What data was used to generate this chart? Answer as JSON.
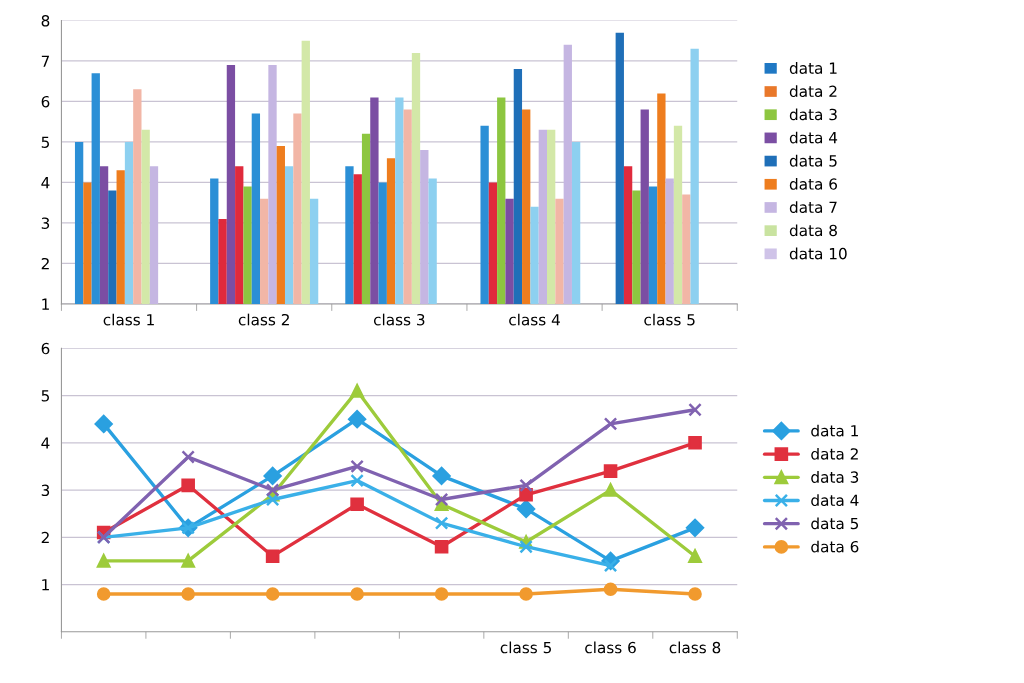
{
  "chart_data": [
    {
      "type": "bar",
      "categories": [
        "class 1",
        "class 2",
        "class 3",
        "class 4",
        "class 5"
      ],
      "series": [
        {
          "name": "data 1",
          "color": "#1f78c4",
          "values": [
            5.0,
            4.1,
            4.4,
            5.4,
            7.7
          ],
          "colors": [
            "#2b8fd6",
            "#2b8fd6",
            "#2b8fd6",
            "#2b8fd6",
            "#1f6fb8"
          ]
        },
        {
          "name": "data 2",
          "color": "#e9782a",
          "values": [
            4.0,
            3.1,
            4.2,
            4.0,
            4.4
          ],
          "colors": [
            "#ee7d1e",
            "#e02a3c",
            "#e02a3c",
            "#e02a3c",
            "#e02a3c"
          ]
        },
        {
          "name": "data 3",
          "color": "#8dc640",
          "values": [
            6.7,
            6.9,
            5.2,
            6.1,
            3.8
          ],
          "colors": [
            "#2b8fd6",
            "#7b4ea3",
            "#8dc640",
            "#8dc640",
            "#8dc640"
          ]
        },
        {
          "name": "data 4",
          "color": "#7b4ea3",
          "values": [
            4.4,
            4.4,
            6.1,
            3.6,
            5.8
          ],
          "colors": [
            "#7b4ea3",
            "#e02a3c",
            "#7b4ea3",
            "#7b4ea3",
            "#7b4ea3"
          ]
        },
        {
          "name": "data 5",
          "color": "#1f6fb8",
          "values": [
            3.8,
            3.9,
            4.0,
            6.8,
            3.9
          ],
          "colors": [
            "#1f6fb8",
            "#8dc640",
            "#2b8fd6",
            "#1f6fb8",
            "#2b8fd6"
          ]
        },
        {
          "name": "data 6",
          "color": "#ee7d1e",
          "values": [
            4.3,
            5.7,
            4.6,
            5.8,
            6.2
          ],
          "colors": [
            "#ee7d1e",
            "#2b8fd6",
            "#ee7d1e",
            "#ee7d1e",
            "#ee7d1e"
          ]
        },
        {
          "name": "data 7",
          "color": "#c5b6e2",
          "values": [
            5.0,
            3.6,
            6.1,
            3.4,
            4.1
          ],
          "colors": [
            "#8dd0f0",
            "#f2b6a6",
            "#8dd0f0",
            "#8dd0f0",
            "#c5b6e2"
          ]
        },
        {
          "name": "data 8",
          "color": "#c9e3a0",
          "values": [
            6.3,
            6.9,
            5.8,
            5.3,
            5.4
          ],
          "colors": [
            "#f2b6a6",
            "#c5b6e2",
            "#f2b6a6",
            "#c5b6e2",
            "#d3e8a8"
          ]
        },
        {
          "values": [
            5.3,
            4.9,
            7.2,
            5.3,
            3.7
          ],
          "colors": [
            "#d3e8a8",
            "#ee7d1e",
            "#d3e8a8",
            "#d3e8a8",
            "#f2b6a6"
          ]
        },
        {
          "name": "data 10",
          "color": "#cfc3e8",
          "values": [
            4.4,
            4.4,
            4.8,
            3.6,
            7.3
          ],
          "colors": [
            "#c5b6e2",
            "#8dd0f0",
            "#c5b6e2",
            "#f2b6a6",
            "#8dd0f0"
          ]
        },
        {
          "values": [
            null,
            5.7,
            4.1,
            7.4,
            null
          ],
          "colors": [
            null,
            "#f2b6a6",
            "#8dd0f0",
            "#c5b6e2",
            null
          ]
        },
        {
          "values": [
            null,
            7.5,
            null,
            5.0,
            null
          ],
          "colors": [
            null,
            "#d3e8a8",
            null,
            "#8dd0f0",
            null
          ]
        },
        {
          "values": [
            null,
            3.6,
            null,
            null,
            null
          ],
          "colors": [
            null,
            "#8dd0f0",
            null,
            null,
            null
          ]
        }
      ],
      "ylim": [
        1,
        8
      ],
      "yticks": [
        1,
        2,
        3,
        4,
        5,
        6,
        7,
        8
      ],
      "grid": "y",
      "legend": "right"
    },
    {
      "type": "line",
      "categories": [
        null,
        null,
        null,
        null,
        null,
        "class 5",
        "class 6",
        "class 8"
      ],
      "series": [
        {
          "name": "data 1",
          "color": "#2aa0e0",
          "marker": "diamond",
          "values": [
            4.4,
            2.2,
            3.3,
            4.5,
            3.3,
            2.6,
            1.5,
            2.2
          ]
        },
        {
          "name": "data 2",
          "color": "#e0303e",
          "marker": "square",
          "values": [
            2.1,
            3.1,
            1.6,
            2.7,
            1.8,
            2.9,
            3.4,
            4.0
          ]
        },
        {
          "name": "data 3",
          "color": "#9dcb3b",
          "marker": "triangle",
          "values": [
            1.5,
            1.5,
            2.9,
            5.1,
            2.7,
            1.9,
            3.0,
            1.6
          ]
        },
        {
          "name": "data 4",
          "color": "#3ab0e8",
          "marker": "cross",
          "values": [
            2.0,
            2.2,
            2.8,
            3.2,
            2.3,
            1.8,
            1.4,
            null
          ]
        },
        {
          "name": "data 5",
          "color": "#8062b0",
          "marker": "cross",
          "values": [
            2.0,
            3.7,
            3.0,
            3.5,
            2.8,
            3.1,
            4.4,
            4.7
          ]
        },
        {
          "name": "data 6",
          "color": "#f19a2e",
          "marker": "circle",
          "values": [
            0.8,
            0.8,
            0.8,
            0.8,
            0.8,
            0.8,
            0.9,
            0.8
          ]
        }
      ],
      "ylim": [
        0,
        6
      ],
      "yticks": [
        1,
        2,
        3,
        4,
        5,
        6
      ],
      "grid": "y",
      "legend": "right",
      "line_style": "solid"
    }
  ]
}
